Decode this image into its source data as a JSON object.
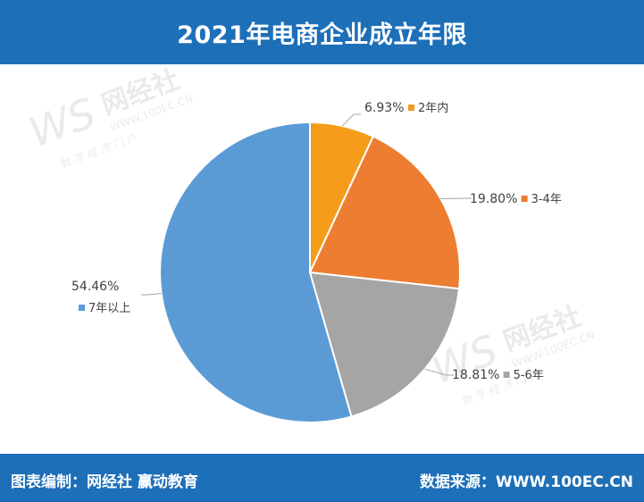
{
  "header": {
    "title": "2021年电商企业成立年限"
  },
  "footer": {
    "left": "图表编制：网经社  赢动教育",
    "right": "数据来源：WWW.100EC.CN"
  },
  "watermark": {
    "logo": "WS",
    "brand": "网经社",
    "url": "WWW.100EC.CN",
    "tagline": "数 字 经 济 门 户"
  },
  "chart_data": {
    "type": "pie",
    "slices": [
      {
        "label": "2年内",
        "value": 6.93,
        "pct_label": "6.93%",
        "color": "#f59c1a"
      },
      {
        "label": "3-4年",
        "value": 19.8,
        "pct_label": "19.80%",
        "color": "#ed7d31"
      },
      {
        "label": "5-6年",
        "value": 18.81,
        "pct_label": "18.81%",
        "color": "#a5a5a5"
      },
      {
        "label": "7年以上",
        "value": 54.46,
        "pct_label": "54.46%",
        "color": "#5b9bd5"
      }
    ],
    "start_angle": "12 o'clock, clockwise"
  }
}
